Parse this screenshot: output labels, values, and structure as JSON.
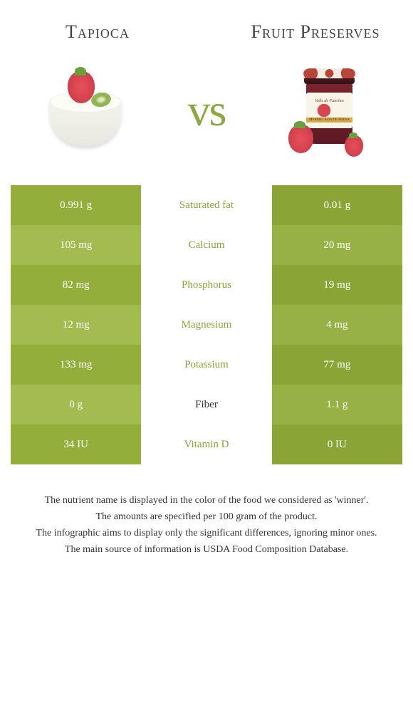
{
  "food_left": {
    "title": "Tapioca"
  },
  "food_right": {
    "title": "Fruit Preserves"
  },
  "vs_text": "vs",
  "colors": {
    "left_dark": "#94ae3c",
    "left_light": "#a3bb4f",
    "right_dark": "#8aa436",
    "right_light": "#98b144",
    "mid_text_left": "#8aa436",
    "mid_text_right": "#333333"
  },
  "nutrients": [
    {
      "name": "Saturated fat",
      "left": "0.991 g",
      "right": "0.01 g",
      "winner": "left"
    },
    {
      "name": "Calcium",
      "left": "105 mg",
      "right": "20 mg",
      "winner": "left"
    },
    {
      "name": "Phosphorus",
      "left": "82 mg",
      "right": "19 mg",
      "winner": "left"
    },
    {
      "name": "Magnesium",
      "left": "12 mg",
      "right": "4 mg",
      "winner": "left"
    },
    {
      "name": "Potassium",
      "left": "133 mg",
      "right": "77 mg",
      "winner": "left"
    },
    {
      "name": "Fiber",
      "left": "0 g",
      "right": "1.1 g",
      "winner": "right"
    },
    {
      "name": "Vitamin D",
      "left": "34 IU",
      "right": "0 IU",
      "winner": "left"
    }
  ],
  "notes": [
    "The nutrient name is displayed in the color of the food we considered as 'winner'.",
    "The amounts are specified per 100 gram of the product.",
    "The infographic aims to display only the significant differences, ignoring minor ones.",
    "The main source of information is USDA Food Composition Database."
  ]
}
